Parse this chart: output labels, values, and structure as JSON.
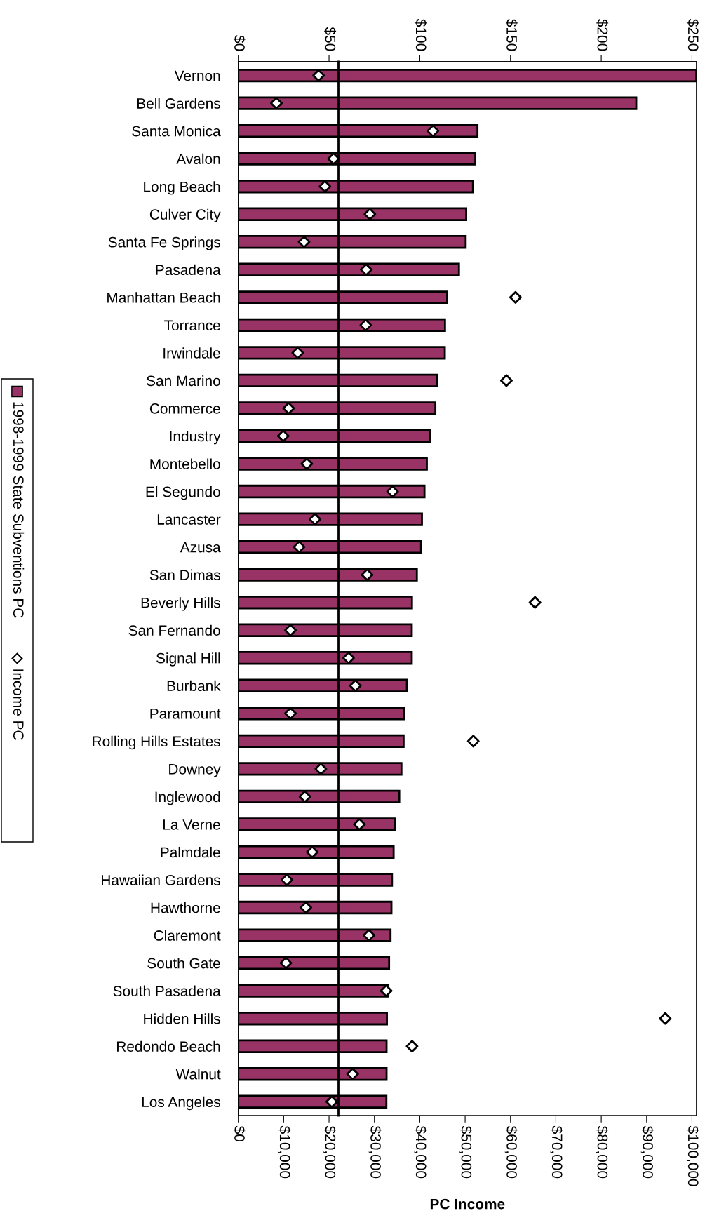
{
  "chart_data": {
    "type": "bar",
    "orientation": "horizontal",
    "xlabel": "PC Income",
    "categories": [
      "Vernon",
      "Bell Gardens",
      "Santa Monica",
      "Avalon",
      "Long Beach",
      "Culver City",
      "Santa Fe Springs",
      "Pasadena",
      "Manhattan Beach",
      "Torrance",
      "Irwindale",
      "San Marino",
      "Commerce",
      "Industry",
      "Montebello",
      "El Segundo",
      "Lancaster",
      "Azusa",
      "San Dimas",
      "Beverly Hills",
      "San Fernando",
      "Signal Hill",
      "Burbank",
      "Paramount",
      "Rolling Hills Estates",
      "Downey",
      "Inglewood",
      "La Verne",
      "Palmdale",
      "Hawaiian Gardens",
      "Hawthorne",
      "Claremont",
      "South Gate",
      "South Pasadena",
      "Hidden Hills",
      "Redondo Beach",
      "Walnut",
      "Los Angeles"
    ],
    "series": [
      {
        "name": "1998-1999 State Subventions PC",
        "axis": "x2",
        "color": "#993366",
        "values": [
          252.4,
          219.3,
          131.8,
          130.6,
          129.3,
          125.6,
          125.3,
          121.6,
          115.1,
          113.9,
          113.8,
          109.6,
          108.6,
          105.6,
          103.9,
          102.6,
          101.2,
          100.7,
          98.4,
          95.7,
          95.6,
          95.6,
          92.9,
          91.2,
          91.1,
          89.9,
          88.7,
          86.2,
          85.6,
          84.7,
          84.4,
          83.9,
          83.1,
          82.7,
          81.9,
          81.7,
          81.7,
          81.6
        ]
      },
      {
        "name": "Income PC",
        "type": "scatter",
        "color": "#ffffff",
        "marker": "diamond",
        "values": [
          17700,
          8400,
          42900,
          21000,
          19100,
          29000,
          14500,
          28200,
          61100,
          28100,
          13100,
          59100,
          11100,
          9900,
          15100,
          34000,
          16900,
          13400,
          28400,
          65400,
          11500,
          24300,
          25800,
          11500,
          51800,
          18200,
          14700,
          26700,
          16300,
          10700,
          14900,
          28800,
          10500,
          32600,
          94100,
          38300,
          25200,
          20600
        ]
      }
    ],
    "xlim": [
      0,
      101000
    ],
    "xticks": [
      {
        "value": 0,
        "label": "$0"
      },
      {
        "value": 10000,
        "label": "$10,000"
      },
      {
        "value": 20000,
        "label": "$20,000"
      },
      {
        "value": 30000,
        "label": "$30,000"
      },
      {
        "value": 40000,
        "label": "$40,000"
      },
      {
        "value": 50000,
        "label": "$50,000"
      },
      {
        "value": 60000,
        "label": "$60,000"
      },
      {
        "value": 70000,
        "label": "$70,000"
      },
      {
        "value": 80000,
        "label": "$80,000"
      },
      {
        "value": 90000,
        "label": "$90,000"
      },
      {
        "value": 100000,
        "label": "$100,000"
      }
    ],
    "x2lim": [
      0,
      252.5
    ],
    "x2ticks": [
      {
        "value": 0,
        "label": "$0"
      },
      {
        "value": 50,
        "label": "$50"
      },
      {
        "value": 100,
        "label": "$100"
      },
      {
        "value": 150,
        "label": "$150"
      },
      {
        "value": 200,
        "label": "$200"
      },
      {
        "value": 250,
        "label": "$250"
      }
    ],
    "ref_lines": [
      {
        "axis": "x2",
        "value": 55.2,
        "color": "#000000",
        "line_style": "solid"
      }
    ],
    "grid": false,
    "legend": "left"
  }
}
